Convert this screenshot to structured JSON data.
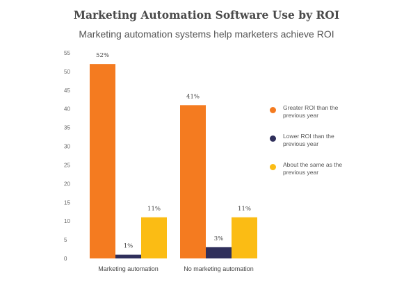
{
  "chart_data": {
    "type": "bar",
    "title": "Marketing Automation Software Use by ROI",
    "subtitle": "Marketing automation systems help marketers achieve ROI",
    "categories": [
      "Marketing automation",
      "No marketing automation"
    ],
    "series": [
      {
        "name": "Greater ROI than the previous year",
        "color": "#f47b20",
        "values": [
          52,
          41
        ],
        "labels": [
          "52%",
          "41%"
        ]
      },
      {
        "name": "Lower ROI than the previous year",
        "color": "#2f2f5b",
        "values": [
          1,
          3
        ],
        "labels": [
          "1%",
          "3%"
        ]
      },
      {
        "name": "About the same as the previous year",
        "color": "#fbbc14",
        "values": [
          11,
          11
        ],
        "labels": [
          "11%",
          "11%"
        ]
      }
    ],
    "ylim": [
      0,
      55
    ],
    "yticks": [
      0,
      5,
      10,
      15,
      20,
      25,
      30,
      35,
      40,
      45,
      50,
      55
    ],
    "grid": false,
    "legend_position": "right"
  }
}
